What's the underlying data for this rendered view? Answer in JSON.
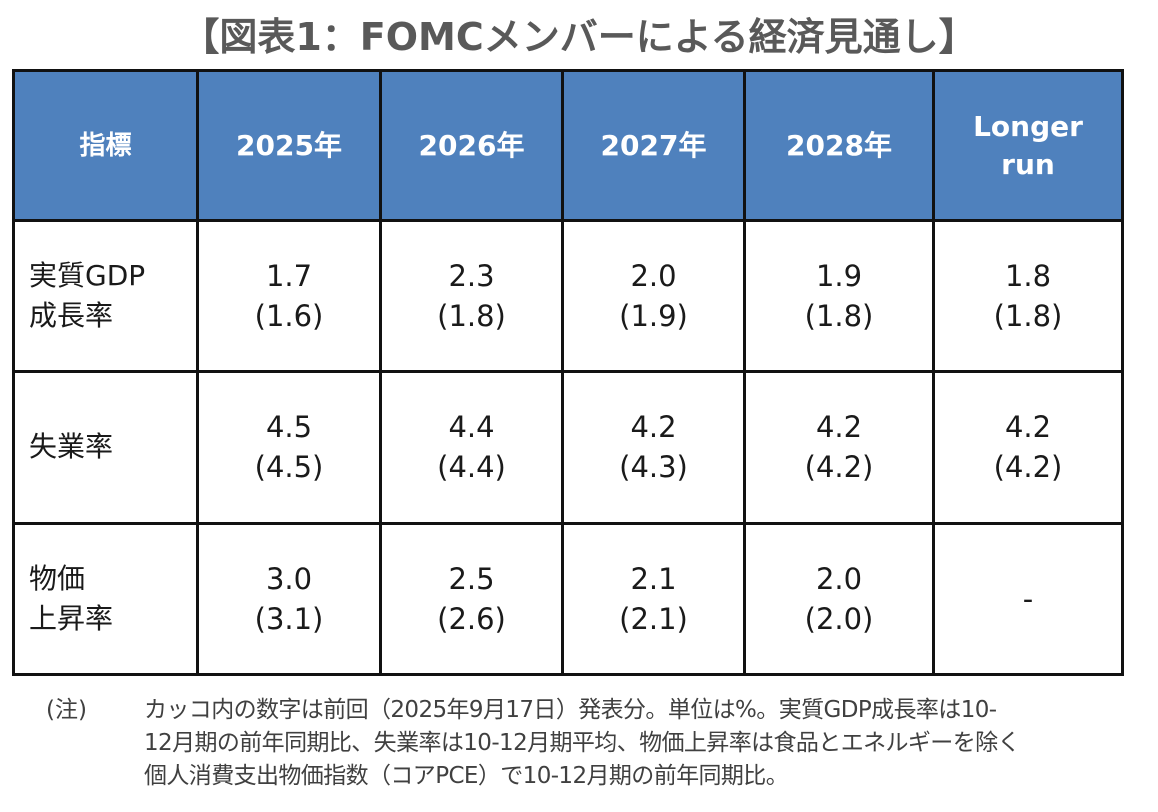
{
  "title": "【図表1：FOMCメンバーによる経済見通し】",
  "table": {
    "headers": [
      "指標",
      "2025年",
      "2026年",
      "2027年",
      "2028年",
      "Longer run"
    ],
    "rows": [
      {
        "label": "実質GDP成長率",
        "label_lines": [
          "実質GDP",
          "成長率"
        ],
        "cells": [
          {
            "value": "1.7",
            "prev": "(1.6)"
          },
          {
            "value": "2.3",
            "prev": "(1.8)"
          },
          {
            "value": "2.0",
            "prev": "(1.9)"
          },
          {
            "value": "1.9",
            "prev": "(1.8)"
          },
          {
            "value": "1.8",
            "prev": "(1.8)"
          }
        ]
      },
      {
        "label": "失業率",
        "label_lines": [
          "失業率"
        ],
        "cells": [
          {
            "value": "4.5",
            "prev": "(4.5)"
          },
          {
            "value": "4.4",
            "prev": "(4.4)"
          },
          {
            "value": "4.2",
            "prev": "(4.3)"
          },
          {
            "value": "4.2",
            "prev": "(4.2)"
          },
          {
            "value": "4.2",
            "prev": "(4.2)"
          }
        ]
      },
      {
        "label": "物価上昇率",
        "label_lines": [
          "物価",
          "上昇率"
        ],
        "cells": [
          {
            "value": "3.0",
            "prev": "(3.1)"
          },
          {
            "value": "2.5",
            "prev": "(2.6)"
          },
          {
            "value": "2.1",
            "prev": "(2.1)"
          },
          {
            "value": "2.0",
            "prev": "(2.0)"
          },
          {
            "value": "-",
            "prev": ""
          }
        ]
      }
    ]
  },
  "note": {
    "label": "(注)",
    "lines": [
      "カッコ内の数字は前回（2025年9月17日）発表分。単位は%。実質GDP成長率は10-",
      "12月期の前年同期比、失業率は10-12月期平均、物価上昇率は食品とエネルギーを除く",
      "個人消費支出物価指数（コアPCE）で10-12月期の前年同期比。"
    ]
  },
  "colors": {
    "header_bg": "#4f81bd",
    "header_text": "#ffffff",
    "title_text": "#595959",
    "border": "#111111"
  }
}
